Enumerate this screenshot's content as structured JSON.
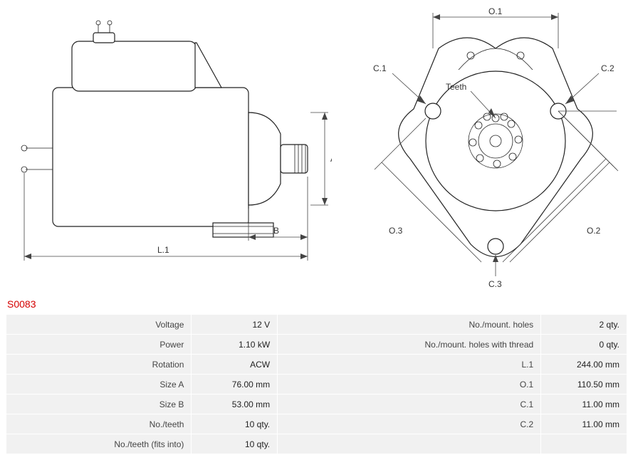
{
  "part_code": "S0083",
  "diagrams": {
    "side_view": {
      "labels": {
        "A": "A",
        "B": "B",
        "L1": "L.1"
      }
    },
    "front_view": {
      "labels": {
        "O1": "O.1",
        "O2": "O.2",
        "O3": "O.3",
        "C1": "C.1",
        "C2": "C.2",
        "C3": "C.3",
        "teeth": "Teeth"
      }
    }
  },
  "specs": {
    "left": [
      {
        "label": "Voltage",
        "value": "12 V"
      },
      {
        "label": "Power",
        "value": "1.10 kW"
      },
      {
        "label": "Rotation",
        "value": "ACW"
      },
      {
        "label": "Size A",
        "value": "76.00 mm"
      },
      {
        "label": "Size B",
        "value": "53.00 mm"
      },
      {
        "label": "No./teeth",
        "value": "10 qty."
      },
      {
        "label": "No./teeth (fits into)",
        "value": "10 qty."
      }
    ],
    "right": [
      {
        "label": "No./mount. holes",
        "value": "2 qty."
      },
      {
        "label": "No./mount. holes with thread",
        "value": "0 qty."
      },
      {
        "label": "L.1",
        "value": "244.00 mm"
      },
      {
        "label": "O.1",
        "value": "110.50 mm"
      },
      {
        "label": "C.1",
        "value": "11.00 mm"
      },
      {
        "label": "C.2",
        "value": "11.00 mm"
      },
      {
        "label": "",
        "value": ""
      }
    ]
  },
  "colors": {
    "accent": "#d40000",
    "row_bg": "#f1f1f1",
    "stroke": "#222222"
  }
}
